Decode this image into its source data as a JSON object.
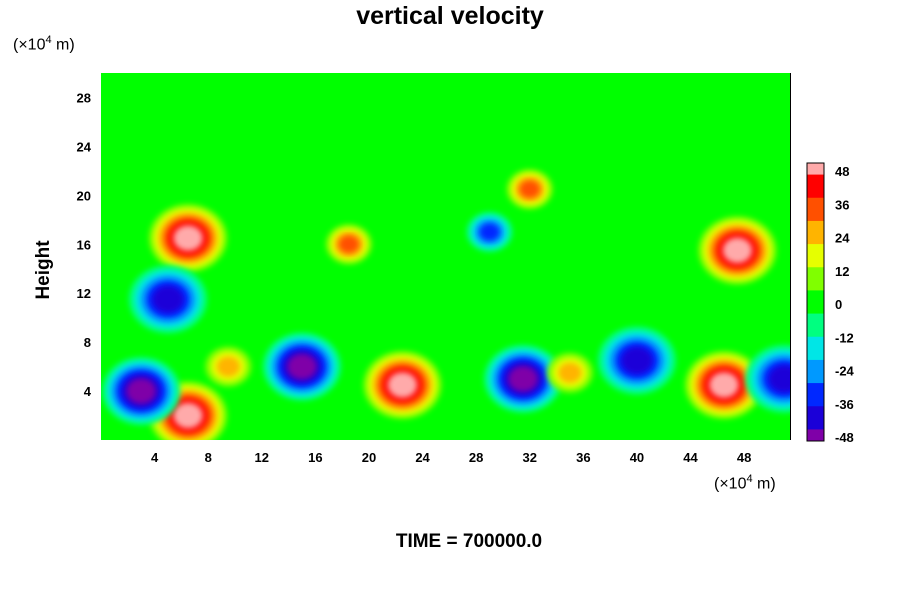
{
  "chart_data": {
    "type": "heatmap",
    "title": "vertical velocity",
    "xlabel": "",
    "ylabel": "Height",
    "x_unit_prefix": "(×10",
    "x_unit_exp": "4",
    "x_unit_suffix": " m)",
    "y_unit_prefix": "(×10",
    "y_unit_exp": "4",
    "y_unit_suffix": " m)",
    "xlim": [
      0,
      51.5
    ],
    "ylim": [
      0,
      30
    ],
    "x_ticks": [
      4,
      8,
      12,
      16,
      20,
      24,
      28,
      32,
      36,
      40,
      44,
      48
    ],
    "y_ticks": [
      4,
      8,
      12,
      16,
      20,
      24,
      28
    ],
    "colorbar": {
      "ticks": [
        48,
        36,
        24,
        12,
        0,
        -12,
        -24,
        -36,
        -48
      ],
      "range": [
        -48,
        48
      ]
    },
    "features": [
      {
        "kind": "updraft",
        "x": 22.5,
        "y": 4.5,
        "value": 48
      },
      {
        "kind": "updraft",
        "x": 46.5,
        "y": 4.5,
        "value": 48
      },
      {
        "kind": "updraft",
        "x": 6.5,
        "y": 16.5,
        "value": 48
      },
      {
        "kind": "updraft",
        "x": 47.5,
        "y": 15.5,
        "value": 48
      },
      {
        "kind": "updraft",
        "x": 6.5,
        "y": 2,
        "value": 48
      },
      {
        "kind": "downdraft",
        "x": 3,
        "y": 4,
        "value": -48
      },
      {
        "kind": "downdraft",
        "x": 15,
        "y": 6,
        "value": -48
      },
      {
        "kind": "downdraft",
        "x": 31.5,
        "y": 5,
        "value": -48
      },
      {
        "kind": "downdraft",
        "x": 40,
        "y": 6.5,
        "value": -44
      },
      {
        "kind": "downdraft",
        "x": 51,
        "y": 5,
        "value": -42
      },
      {
        "kind": "downdraft",
        "x": 5,
        "y": 11.5,
        "value": -44
      },
      {
        "kind": "updraft",
        "x": 35,
        "y": 5.5,
        "value": 30
      },
      {
        "kind": "updraft",
        "x": 9.5,
        "y": 6,
        "value": 26
      },
      {
        "kind": "updraft",
        "x": 18.5,
        "y": 16,
        "value": 36
      },
      {
        "kind": "updraft",
        "x": 32,
        "y": 20.5,
        "value": 38
      },
      {
        "kind": "downdraft",
        "x": 29,
        "y": 17,
        "value": -32
      }
    ]
  },
  "time_label": "TIME = 700000.0"
}
